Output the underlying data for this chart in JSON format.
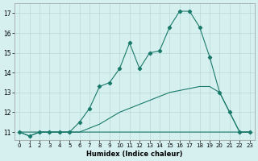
{
  "xlabel": "Humidex (Indice chaleur)",
  "bg_color": "#d6f0f0",
  "grid_color": "#b8d8d8",
  "line_color": "#1a7a6a",
  "xlim_min": -0.5,
  "xlim_max": 23.5,
  "ylim_min": 10.6,
  "ylim_max": 17.5,
  "xticks": [
    0,
    1,
    2,
    3,
    4,
    5,
    6,
    7,
    8,
    9,
    10,
    11,
    12,
    13,
    14,
    15,
    16,
    17,
    18,
    19,
    20,
    21,
    22,
    23
  ],
  "yticks": [
    11,
    12,
    13,
    14,
    15,
    16,
    17
  ],
  "line1_x": [
    0,
    1,
    2,
    3,
    4,
    5,
    6,
    7,
    8,
    9,
    10,
    11,
    12,
    13,
    14,
    15,
    16,
    17,
    18,
    19,
    20,
    21,
    22,
    23
  ],
  "line1_y": [
    11,
    10.8,
    11,
    11,
    11,
    11,
    11,
    11,
    11,
    11,
    11,
    11,
    11,
    11,
    11,
    11,
    11,
    11,
    11,
    11,
    11,
    11,
    11,
    11
  ],
  "line2_x": [
    0,
    2,
    3,
    4,
    5,
    6,
    7,
    8,
    9,
    10,
    11,
    12,
    13,
    14,
    15,
    16,
    17,
    18,
    19,
    20,
    21,
    22,
    23
  ],
  "line2_y": [
    11,
    11,
    11,
    11,
    11,
    11,
    11.2,
    11.4,
    11.7,
    12.0,
    12.2,
    12.4,
    12.6,
    12.8,
    13.0,
    13.1,
    13.2,
    13.3,
    13.3,
    13.0,
    12.0,
    11.0,
    11.0
  ],
  "line3_x": [
    0,
    1,
    2,
    3,
    4,
    5,
    6,
    7,
    8,
    9,
    10,
    11,
    12,
    13,
    14,
    15,
    16,
    17,
    18,
    19,
    20,
    21,
    22,
    23
  ],
  "line3_y": [
    11,
    10.8,
    11,
    11,
    11,
    11,
    11.5,
    12.2,
    13.3,
    13.5,
    14.2,
    15.5,
    14.2,
    15.0,
    15.1,
    16.3,
    17.1,
    17.1,
    16.3,
    14.8,
    13.0,
    12.0,
    11.0,
    11.0
  ]
}
